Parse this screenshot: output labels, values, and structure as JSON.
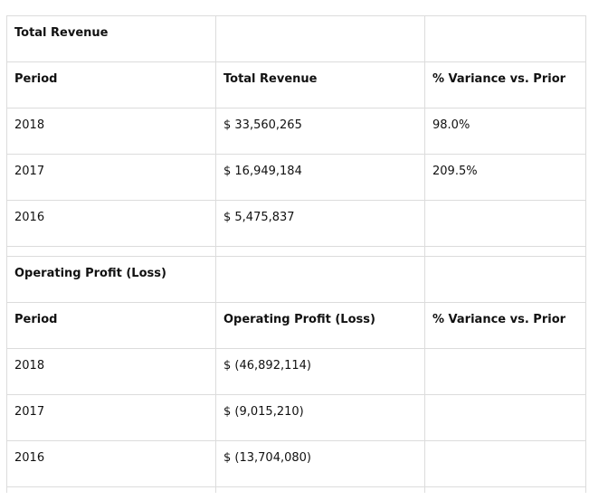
{
  "revenue_section": {
    "title": "Total Revenue",
    "headers": [
      "Period",
      "Total Revenue",
      "% Variance vs. Prior"
    ],
    "rows": [
      {
        "period": "2018",
        "value": "$ 33,560,265",
        "variance": "98.0%"
      },
      {
        "period": "2017",
        "value": "$ 16,949,184",
        "variance": "209.5%"
      },
      {
        "period": "2016",
        "value": "$ 5,475,837",
        "variance": ""
      }
    ]
  },
  "profit_section": {
    "title": "Operating Profit (Loss)",
    "headers": [
      "Period",
      "Operating Profit (Loss)",
      "% Variance vs. Prior"
    ],
    "rows": [
      {
        "period": "2018",
        "value": "$ (46,892,114)",
        "variance": ""
      },
      {
        "period": "2017",
        "value": "$ (9,015,210)",
        "variance": ""
      },
      {
        "period": "2016",
        "value": "$ (13,704,080)",
        "variance": ""
      }
    ]
  }
}
